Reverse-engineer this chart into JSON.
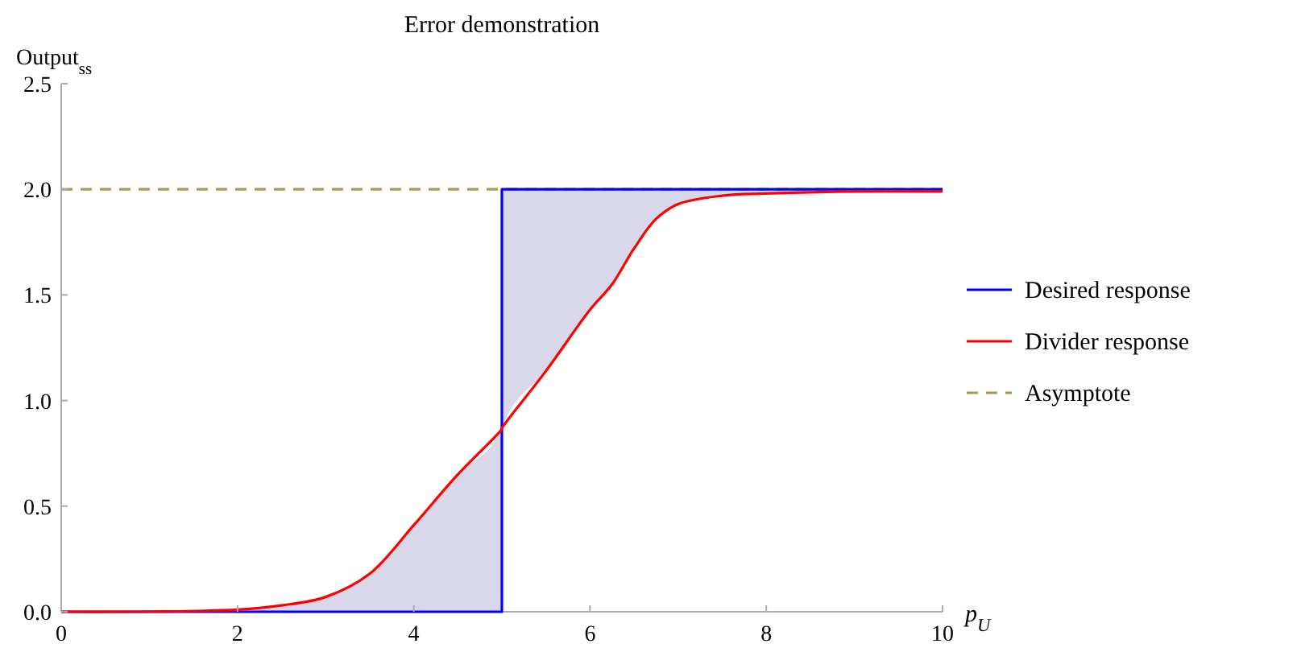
{
  "chart_data": {
    "type": "line",
    "title": "Error demonstration",
    "xlabel": "p$_{U}$",
    "ylabel": "Output$_{ss}$",
    "xlim": [
      0,
      10
    ],
    "ylim": [
      0,
      2.5
    ],
    "xticks": [
      0,
      2,
      4,
      6,
      8,
      10
    ],
    "yticks": [
      {
        "value": 0,
        "label": "0.0"
      },
      {
        "value": 0.5,
        "label": "0.5"
      },
      {
        "value": 1,
        "label": "1.0"
      },
      {
        "value": 1.5,
        "label": "1.5"
      },
      {
        "value": 2,
        "label": "2.0"
      },
      {
        "value": 2.5,
        "label": "2.5"
      }
    ],
    "grid": false,
    "legend": "right",
    "line_style": "solid",
    "marker": "none",
    "series": [
      {
        "name": "Desired response",
        "color": "#0000ff",
        "x": [
          0,
          5,
          5,
          10
        ],
        "values": [
          0,
          0,
          2,
          2
        ]
      },
      {
        "name": "Divider response",
        "color": "#ff0000",
        "x": [
          0,
          1,
          2,
          2.5,
          3,
          3.5,
          4,
          4.5,
          4.99,
          5,
          5.5,
          6,
          6.25,
          6.5,
          6.75,
          7,
          7.5,
          8,
          9,
          10
        ],
        "values": [
          0,
          0.001,
          0.01,
          0.03,
          0.07,
          0.18,
          0.41,
          0.65,
          0.86,
          0.87,
          1.14,
          1.43,
          1.55,
          1.72,
          1.86,
          1.93,
          1.97,
          1.98,
          1.99,
          1.99
        ],
        "lower": [
          0,
          0,
          0,
          0,
          0,
          0,
          0,
          0,
          0,
          0.87,
          1.14,
          1.43,
          1.55,
          1.72,
          1.86,
          1.93,
          1.97,
          1.98,
          1.99,
          1.99
        ],
        "upper": [
          0,
          0.001,
          0.01,
          0.03,
          0.07,
          0.18,
          0.41,
          0.65,
          0.86,
          2,
          2,
          2,
          2,
          2,
          2,
          2,
          2,
          2,
          2,
          2
        ]
      }
    ],
    "ref_lines": [
      {
        "axis": "y",
        "value": 2,
        "label": "Asymptote",
        "color": "#a89a55",
        "line_style": "dashed"
      }
    ]
  }
}
